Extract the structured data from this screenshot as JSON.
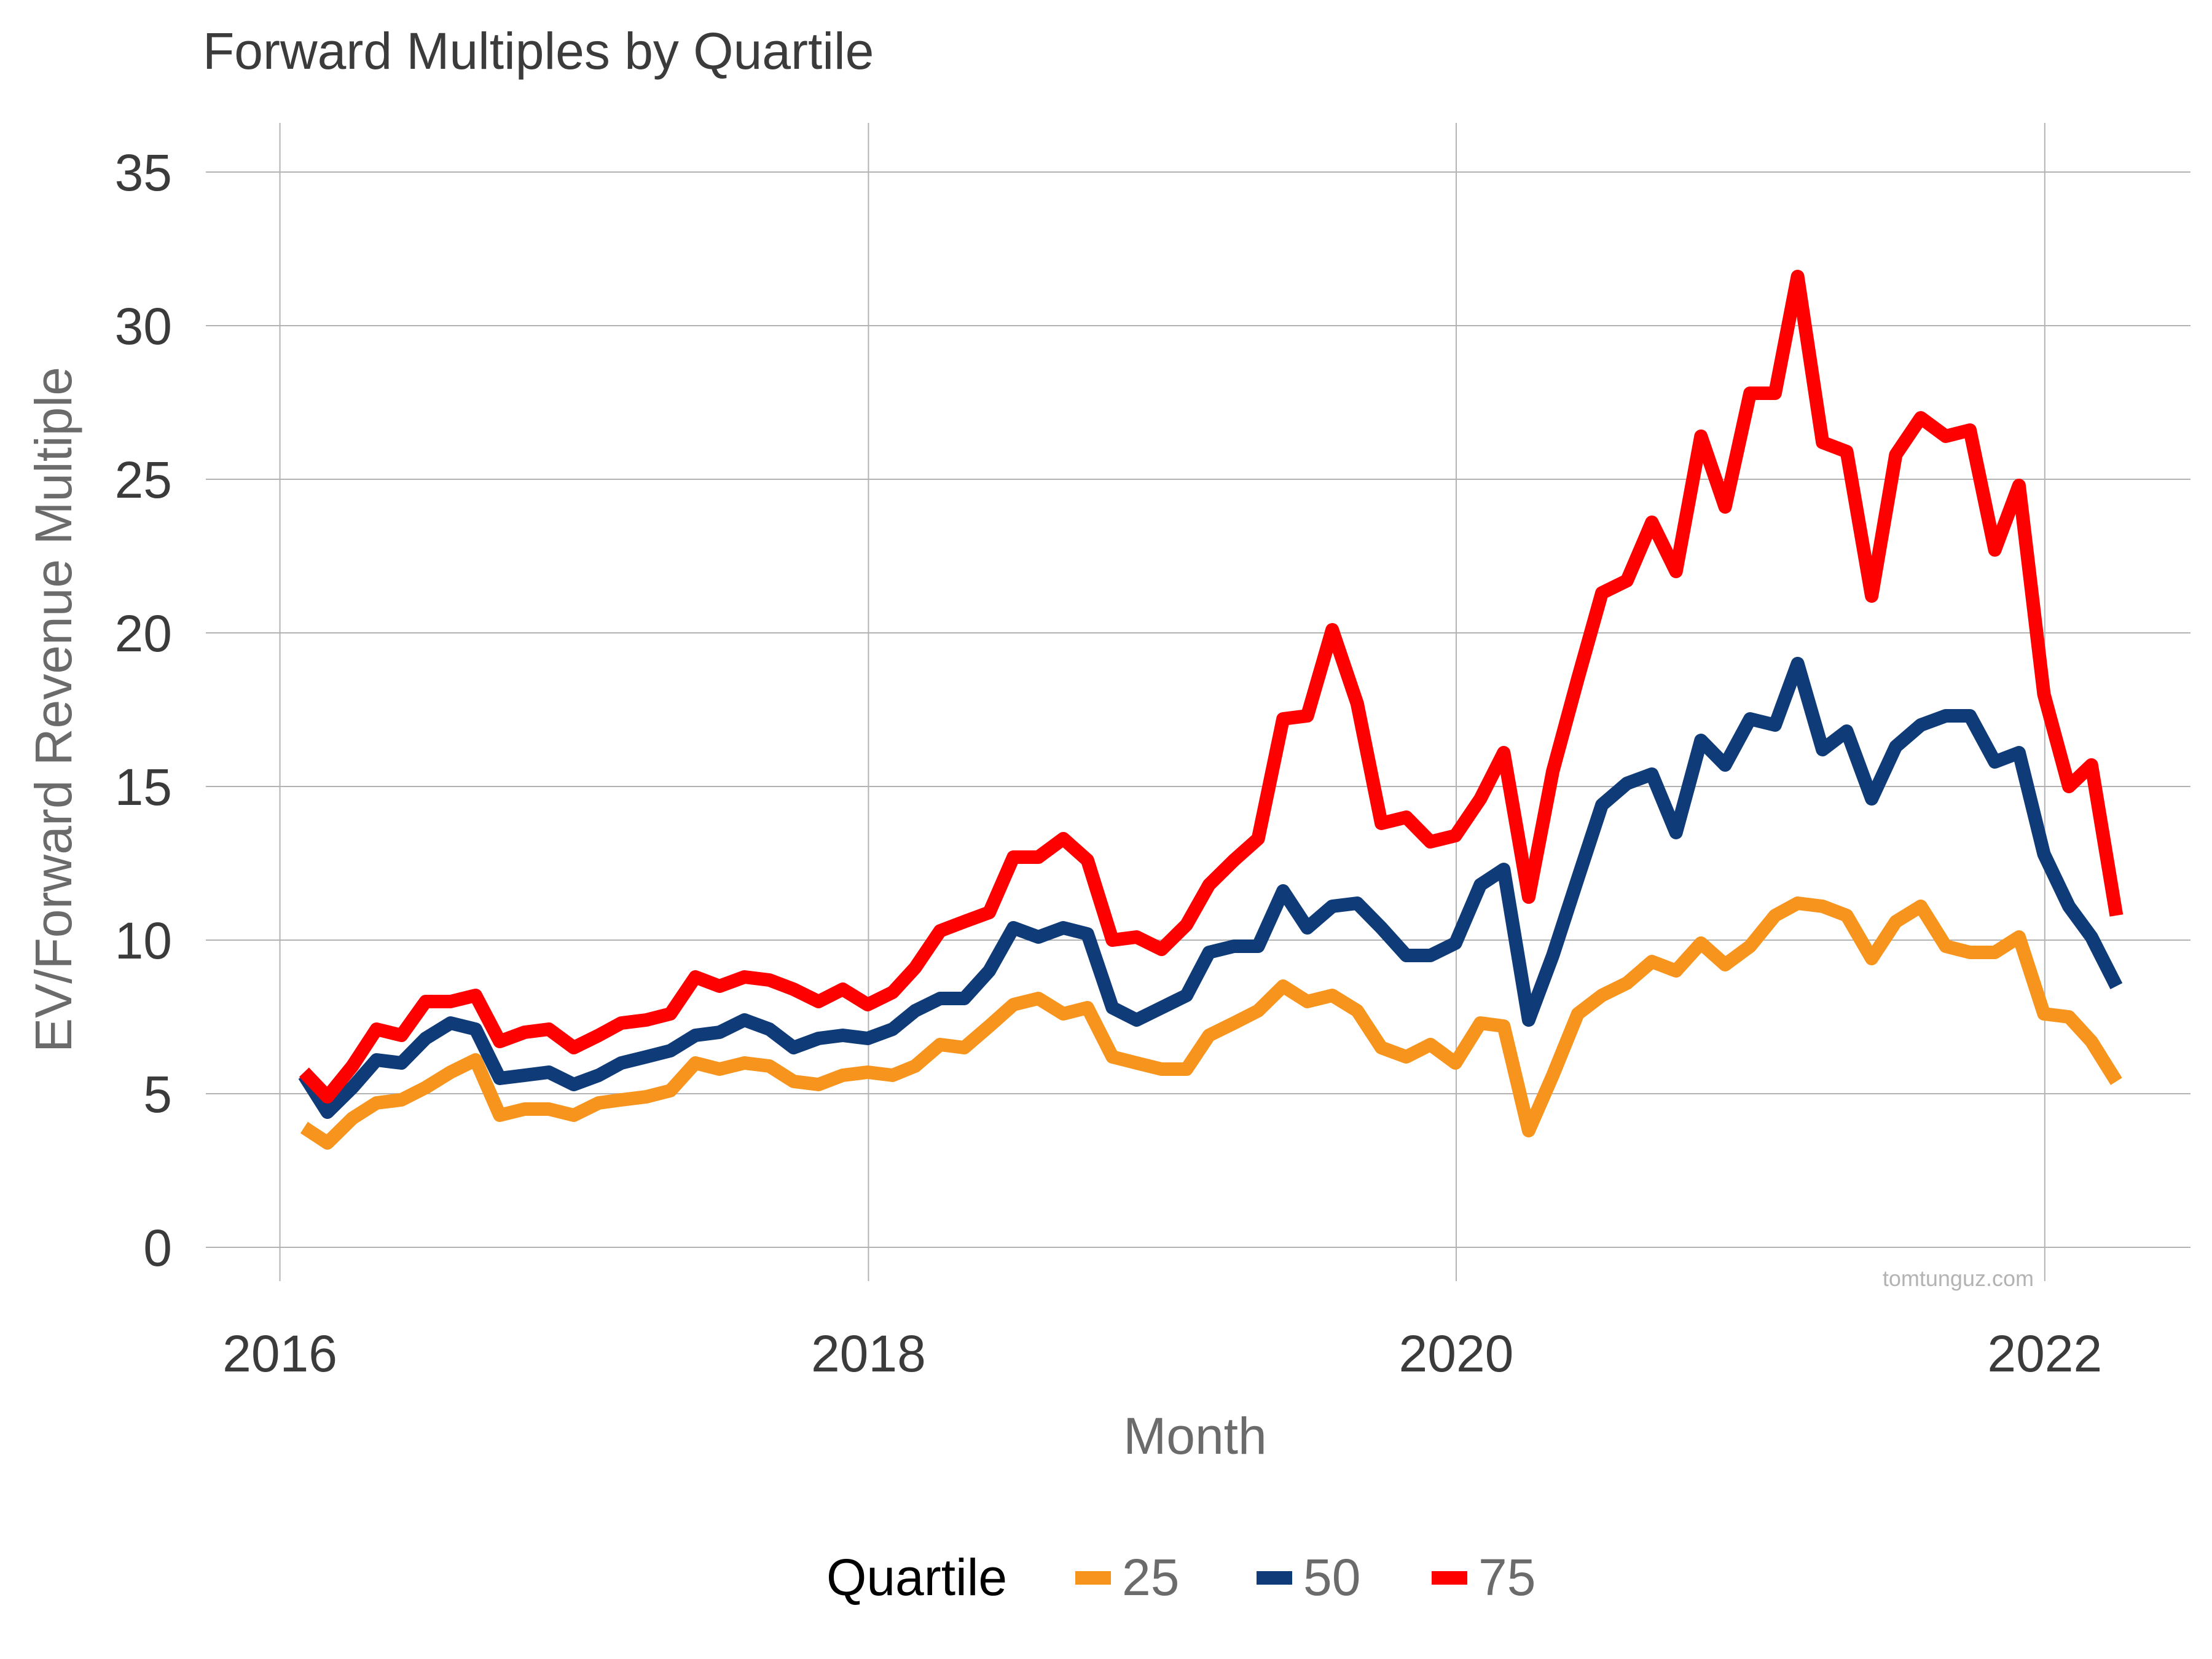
{
  "chart_data": {
    "type": "line",
    "title": "Forward Multiples by Quartile",
    "xlabel": "Month",
    "ylabel": "EV/Forward Revenue Multiple",
    "xlim": [
      "2015-10-01",
      "2022-07-01"
    ],
    "ylim": [
      -1.1,
      36.6
    ],
    "x_ticks": [
      {
        "label": "2016",
        "value": "2016-01-01"
      },
      {
        "label": "2018",
        "value": "2018-01-01"
      },
      {
        "label": "2020",
        "value": "2020-01-01"
      },
      {
        "label": "2022",
        "value": "2022-01-01"
      }
    ],
    "y_ticks": [
      0,
      5,
      10,
      15,
      20,
      25,
      30,
      35
    ],
    "grid": true,
    "legend": {
      "title": "Quartile",
      "position": "bottom"
    },
    "watermark": "tomtunguz.com",
    "x": [
      "2016-01-31",
      "2016-02-29",
      "2016-03-31",
      "2016-04-30",
      "2016-05-31",
      "2016-06-30",
      "2016-07-31",
      "2016-08-31",
      "2016-09-30",
      "2016-10-31",
      "2016-11-30",
      "2016-12-31",
      "2017-01-31",
      "2017-02-28",
      "2017-03-31",
      "2017-04-30",
      "2017-05-31",
      "2017-06-30",
      "2017-07-31",
      "2017-08-31",
      "2017-09-30",
      "2017-10-31",
      "2017-11-30",
      "2017-12-31",
      "2018-01-31",
      "2018-02-28",
      "2018-03-31",
      "2018-04-30",
      "2018-05-31",
      "2018-06-30",
      "2018-07-31",
      "2018-08-31",
      "2018-09-30",
      "2018-10-31",
      "2018-11-30",
      "2018-12-31",
      "2019-01-31",
      "2019-02-28",
      "2019-03-31",
      "2019-04-30",
      "2019-05-31",
      "2019-06-30",
      "2019-07-31",
      "2019-08-31",
      "2019-09-30",
      "2019-10-31",
      "2019-11-30",
      "2019-12-31",
      "2020-01-31",
      "2020-02-29",
      "2020-03-31",
      "2020-04-30",
      "2020-05-31",
      "2020-06-30",
      "2020-07-31",
      "2020-08-31",
      "2020-09-30",
      "2020-10-31",
      "2020-11-30",
      "2020-12-31",
      "2021-01-31",
      "2021-02-28",
      "2021-03-31",
      "2021-04-30",
      "2021-05-31",
      "2021-06-30",
      "2021-07-31",
      "2021-08-31",
      "2021-09-30",
      "2021-10-31",
      "2021-11-30",
      "2021-12-31",
      "2022-01-31",
      "2022-02-28",
      "2022-03-31"
    ],
    "series": [
      {
        "name": "25",
        "color": "#f7941d",
        "values": [
          3.9,
          3.4,
          4.2,
          4.7,
          4.8,
          5.2,
          5.7,
          6.1,
          4.3,
          4.5,
          4.5,
          4.3,
          4.7,
          4.8,
          4.9,
          5.1,
          6.0,
          5.8,
          6.0,
          5.9,
          5.4,
          5.3,
          5.6,
          5.7,
          5.6,
          5.9,
          6.6,
          6.5,
          7.2,
          7.9,
          8.1,
          7.6,
          7.8,
          6.2,
          6.0,
          5.8,
          5.8,
          6.9,
          7.3,
          7.7,
          8.5,
          8.0,
          8.2,
          7.7,
          6.5,
          6.2,
          6.6,
          6.0,
          7.3,
          7.2,
          3.8,
          5.6,
          7.6,
          8.2,
          8.6,
          9.3,
          9.0,
          9.9,
          9.2,
          9.8,
          10.8,
          11.2,
          11.1,
          10.8,
          9.4,
          10.6,
          11.1,
          9.8,
          9.6,
          9.6,
          10.1,
          7.6,
          7.5,
          6.7,
          5.4
        ]
      },
      {
        "name": "50",
        "color": "#0f3b78",
        "values": [
          5.6,
          4.4,
          5.2,
          6.1,
          6.0,
          6.8,
          7.3,
          7.1,
          5.5,
          5.6,
          5.7,
          5.3,
          5.6,
          6.0,
          6.2,
          6.4,
          6.9,
          7.0,
          7.4,
          7.1,
          6.5,
          6.8,
          6.9,
          6.8,
          7.1,
          7.7,
          8.1,
          8.1,
          9.0,
          10.4,
          10.1,
          10.4,
          10.2,
          7.8,
          7.4,
          7.8,
          8.2,
          9.6,
          9.8,
          9.8,
          11.6,
          10.4,
          11.1,
          11.2,
          10.4,
          9.5,
          9.5,
          9.9,
          11.8,
          12.3,
          7.4,
          9.5,
          12.0,
          14.4,
          15.1,
          15.4,
          13.5,
          16.5,
          15.7,
          17.2,
          17.0,
          19.0,
          16.2,
          16.8,
          14.6,
          16.3,
          17.0,
          17.3,
          17.3,
          15.8,
          16.1,
          12.8,
          11.1,
          10.1,
          8.5
        ]
      },
      {
        "name": "75",
        "color": "#ff0000",
        "values": [
          5.7,
          4.9,
          5.9,
          7.1,
          6.9,
          8.0,
          8.0,
          8.2,
          6.7,
          7.0,
          7.1,
          6.5,
          6.9,
          7.3,
          7.4,
          7.6,
          8.8,
          8.5,
          8.8,
          8.7,
          8.4,
          8.0,
          8.4,
          7.9,
          8.3,
          9.1,
          10.3,
          10.6,
          10.9,
          12.7,
          12.7,
          13.3,
          12.6,
          10.0,
          10.1,
          9.7,
          10.5,
          11.8,
          12.6,
          13.3,
          17.2,
          17.3,
          20.1,
          17.7,
          13.8,
          14.0,
          13.2,
          13.4,
          14.6,
          16.1,
          11.4,
          15.5,
          18.5,
          21.3,
          21.7,
          23.6,
          22.0,
          26.4,
          24.1,
          27.8,
          27.8,
          31.6,
          26.2,
          25.9,
          21.2,
          25.8,
          27.0,
          26.4,
          26.6,
          22.7,
          24.8,
          18.0,
          15.0,
          15.7,
          10.8
        ]
      }
    ]
  }
}
